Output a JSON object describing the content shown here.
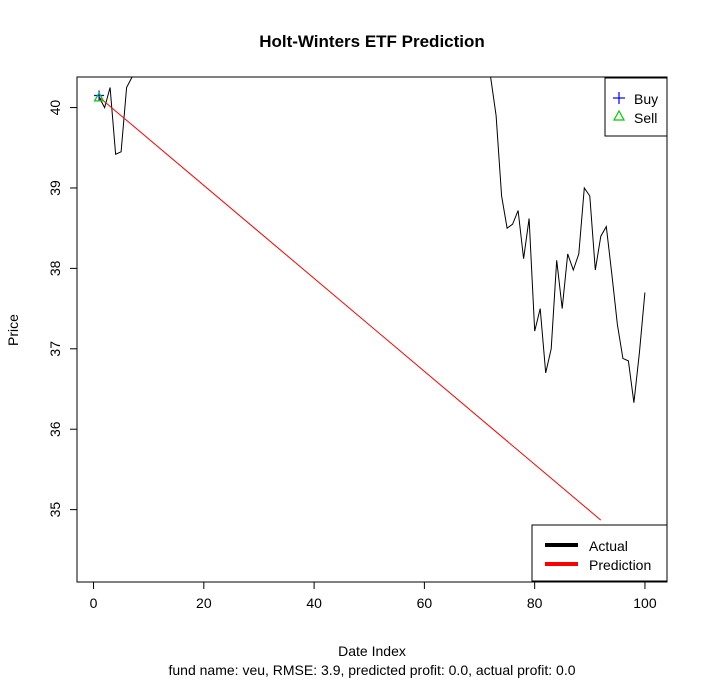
{
  "chart_data": {
    "type": "line",
    "title": "Holt-Winters ETF Prediction",
    "xlabel": "Date Index",
    "ylabel": "Price",
    "subtitle": "fund name: veu, RMSE: 3.9, predicted profit: 0.0, actual profit: 0.0",
    "xlim": [
      -3,
      104
    ],
    "ylim": [
      34.1,
      40.38
    ],
    "x_ticks": [
      0,
      20,
      40,
      60,
      80,
      100
    ],
    "y_ticks": [
      35,
      36,
      37,
      38,
      39,
      40
    ],
    "series": [
      {
        "name": "Actual",
        "color": "#000000",
        "x": [
          1,
          2,
          3,
          4,
          5,
          6,
          7,
          8,
          71,
          72,
          73,
          74,
          75,
          76,
          77,
          78,
          79,
          80,
          81,
          82,
          83,
          84,
          85,
          86,
          87,
          88,
          89,
          90,
          91,
          92,
          93,
          94,
          95,
          96,
          97,
          98,
          99,
          100
        ],
        "y": [
          40.13,
          40.0,
          40.25,
          39.42,
          39.45,
          40.25,
          40.38,
          40.38,
          40.38,
          40.38,
          39.9,
          38.9,
          38.5,
          38.55,
          38.72,
          38.12,
          38.62,
          37.22,
          37.5,
          36.7,
          37.0,
          38.1,
          37.5,
          38.18,
          37.98,
          38.18,
          39.0,
          38.9,
          37.98,
          38.4,
          38.52,
          37.92,
          37.3,
          36.88,
          36.85,
          36.33,
          36.95,
          37.7
        ]
      },
      {
        "name": "Prediction",
        "color": "#ff0000",
        "x": [
          1,
          92
        ],
        "y": [
          40.13,
          34.87
        ]
      }
    ],
    "markers": {
      "buy": {
        "label": "Buy",
        "color": "#0000ff",
        "points": [
          {
            "x": 1,
            "y": 40.15
          }
        ]
      },
      "sell": {
        "label": "Sell",
        "color": "#00cc00",
        "points": [
          {
            "x": 1,
            "y": 40.12
          }
        ]
      }
    },
    "legends": {
      "markers_legend": {
        "placement": "top-right",
        "items": [
          "Buy",
          "Sell"
        ]
      },
      "lines_legend": {
        "placement": "bottom-right",
        "items": [
          "Actual",
          "Prediction"
        ]
      }
    }
  }
}
